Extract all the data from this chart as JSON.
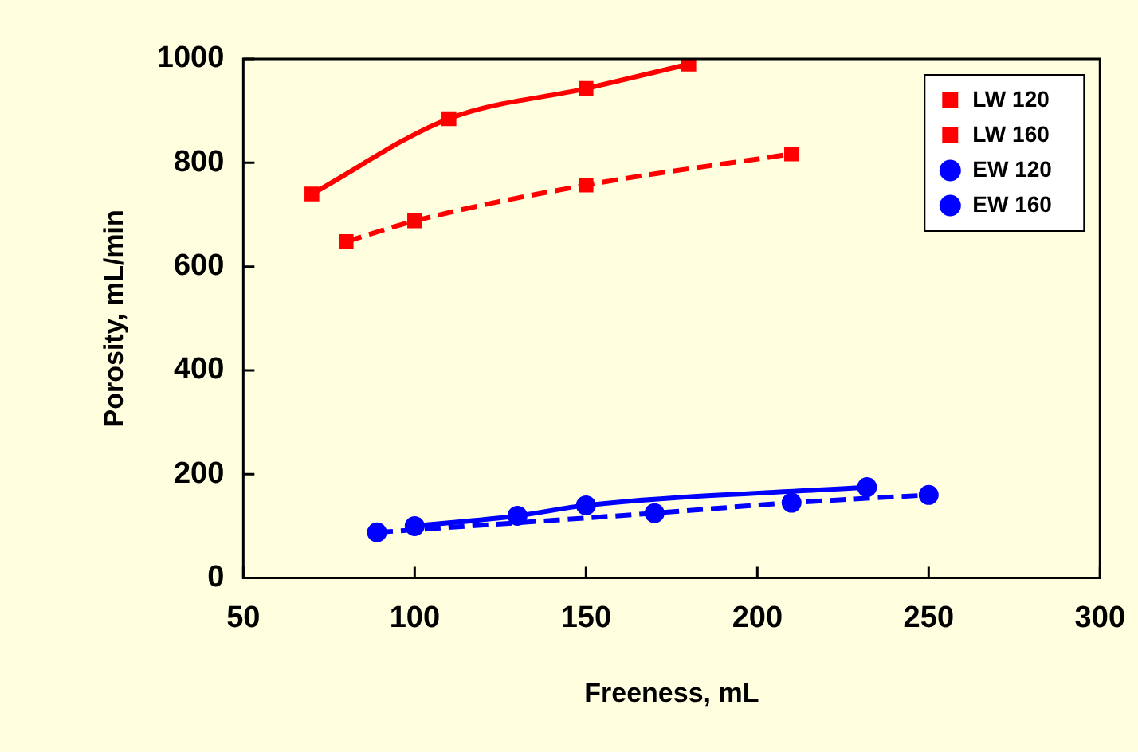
{
  "chart_data": {
    "type": "line",
    "xlabel": "Freeness, mL",
    "ylabel": "Porosity, mL/min",
    "xlim": [
      50,
      300
    ],
    "xticks": [
      50,
      100,
      150,
      200,
      250,
      300
    ],
    "ylim": [
      0,
      1000
    ],
    "yticks": [
      0,
      200,
      400,
      600,
      800,
      1000
    ],
    "grid": false,
    "legend": "top right",
    "series": [
      {
        "name": "LW 120",
        "color": "#ff0000",
        "x": [
          80,
          100,
          150,
          210
        ],
        "values": [
          648,
          688,
          757,
          817
        ],
        "marker": "square",
        "line_style": "dashed"
      },
      {
        "name": "LW 160",
        "color": "#ff0000",
        "x": [
          70,
          110,
          150,
          180
        ],
        "values": [
          740,
          885,
          943,
          990
        ],
        "marker": "square",
        "line_style": "solid"
      },
      {
        "name": "EW 120",
        "color": "#0000ff",
        "x": [
          89,
          170,
          210,
          250
        ],
        "values": [
          88,
          125,
          145,
          160
        ],
        "marker": "circle",
        "line_style": "dashed"
      },
      {
        "name": "EW 160",
        "color": "#0000ff",
        "x": [
          100,
          130,
          150,
          232
        ],
        "values": [
          100,
          120,
          140,
          175
        ],
        "marker": "circle",
        "line_style": "solid"
      }
    ]
  }
}
